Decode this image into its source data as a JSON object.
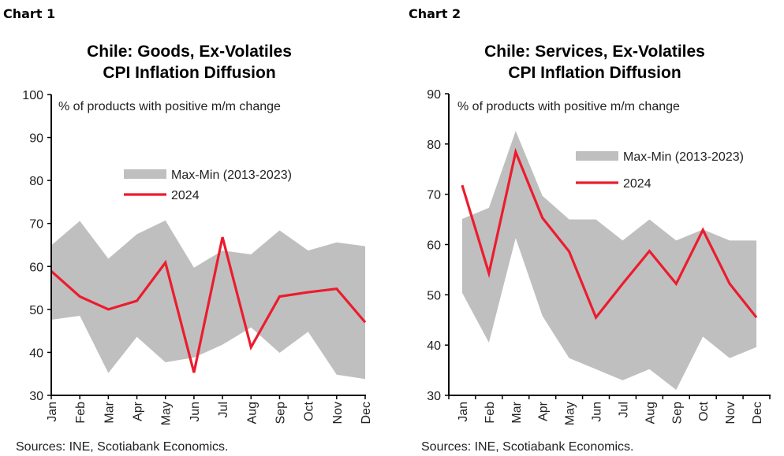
{
  "charts": [
    {
      "label": "Chart 1",
      "title_lines": [
        "Chile: Goods, Ex-Volatiles",
        "CPI Inflation Diffusion"
      ],
      "note": "% of products with positive m/m change",
      "source": "Sources: INE, Scotiabank Economics.",
      "legend": {
        "band": "Max-Min (2013-2023)",
        "line": "2024"
      }
    },
    {
      "label": "Chart 2",
      "title_lines": [
        "Chile: Services, Ex-Volatiles",
        "CPI Inflation Diffusion"
      ],
      "note": "% of products with positive m/m change",
      "source": "Sources: INE, Scotiabank Economics.",
      "legend": {
        "band": "Max-Min (2013-2023)",
        "line": "2024"
      }
    }
  ],
  "colors": {
    "band": "#bfbfbf",
    "line": "#ec1c2e",
    "axis": "#000000"
  },
  "chart_data": [
    {
      "type": "area",
      "title": "Chile: Goods, Ex-Volatiles CPI Inflation Diffusion",
      "ylabel": "% of products with positive m/m change",
      "categories": [
        "Jan",
        "Feb",
        "Mar",
        "Apr",
        "May",
        "Jun",
        "Jul",
        "Aug",
        "Sep",
        "Oct",
        "Nov",
        "Dec"
      ],
      "ylim": [
        30,
        100
      ],
      "yticks": [
        30,
        40,
        50,
        60,
        70,
        80,
        90,
        100
      ],
      "grid": false,
      "legend_placement": "center",
      "series": [
        {
          "name": "Max-Min (2013-2023)",
          "type": "band",
          "max": [
            64.9,
            70.6,
            61.8,
            67.5,
            70.7,
            59.7,
            63.7,
            62.8,
            68.4,
            63.7,
            65.6,
            64.7
          ],
          "min": [
            47.6,
            48.5,
            35.2,
            43.6,
            37.7,
            38.8,
            41.8,
            45.8,
            39.9,
            44.8,
            34.8,
            33.8
          ]
        },
        {
          "name": "2024",
          "type": "line",
          "values": [
            58.9,
            53.0,
            50.0,
            52.0,
            60.9,
            35.3,
            66.8,
            41.2,
            53.0,
            54.0,
            54.8,
            47.0
          ]
        }
      ]
    },
    {
      "type": "area",
      "title": "Chile: Services, Ex-Volatiles CPI Inflation Diffusion",
      "ylabel": "% of products with positive m/m change",
      "categories": [
        "Jan",
        "Feb",
        "Mar",
        "Apr",
        "May",
        "Jun",
        "Jul",
        "Aug",
        "Sep",
        "Oct",
        "Nov",
        "Dec"
      ],
      "ylim": [
        30,
        90
      ],
      "yticks": [
        30,
        40,
        50,
        60,
        70,
        80,
        90
      ],
      "grid": false,
      "legend_placement": "top-right",
      "series": [
        {
          "name": "Max-Min (2013-2023)",
          "type": "band",
          "max": [
            65.1,
            67.3,
            82.6,
            69.7,
            65.0,
            65.0,
            60.8,
            65.0,
            60.8,
            63.0,
            60.8,
            60.8
          ],
          "min": [
            50.4,
            40.5,
            61.3,
            45.8,
            37.4,
            35.2,
            33.0,
            35.2,
            31.1,
            41.7,
            37.4,
            39.6
          ]
        },
        {
          "name": "2024",
          "type": "line",
          "values": [
            71.8,
            54.3,
            78.4,
            65.3,
            58.6,
            45.5,
            52.2,
            58.7,
            52.2,
            62.9,
            52.2,
            45.5
          ]
        }
      ]
    }
  ]
}
